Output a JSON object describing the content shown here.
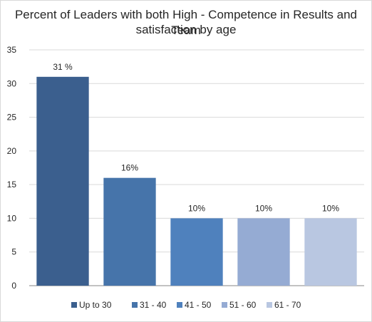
{
  "chart_data": {
    "type": "bar",
    "title_lines": [
      "Percent of Leaders with both High - Competence in Results and Team",
      "satisfaction by age"
    ],
    "categories": [
      "Up to 30",
      "31 - 40",
      "41 - 50",
      "51 - 60",
      "61 - 70"
    ],
    "values": [
      31,
      16,
      10,
      10,
      10
    ],
    "data_labels": [
      "31 %",
      "16%",
      "10%",
      "10%",
      "10%"
    ],
    "colors": [
      "#3b5f8e",
      "#4674aa",
      "#4f81bd",
      "#95abd3",
      "#b9c7e1"
    ],
    "ylim": [
      0,
      35
    ],
    "yticks": [
      0,
      5,
      10,
      15,
      20,
      25,
      30,
      35
    ],
    "grid": "horizontal",
    "legend_position": "bottom"
  }
}
